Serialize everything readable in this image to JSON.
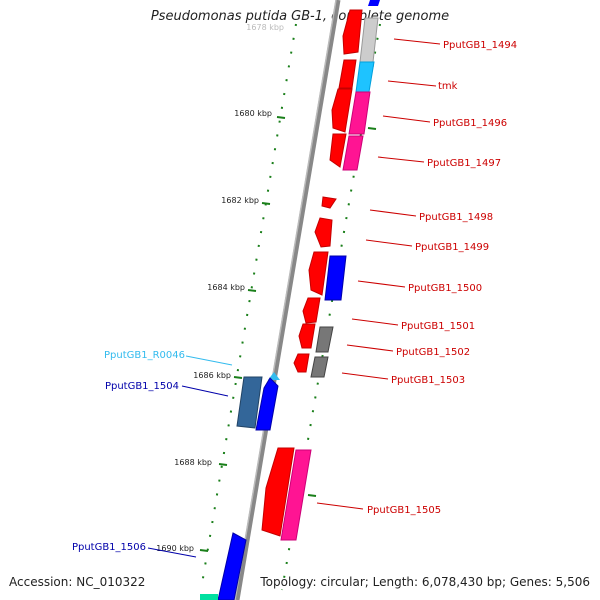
{
  "title": "Pseudomonas putida GB-1, complete genome",
  "footer": {
    "accession": "Accession: NC_010322",
    "topology": "Topology: circular; Length: 6,078,430 bp; Genes: 5,506"
  },
  "colors": {
    "gene_cds_forward": "#ff0000",
    "gene_cds_reverse": "#0000ff",
    "gene_other": "#ff1493",
    "gene_gray": "#777777",
    "gene_tmk": "#00bfff",
    "rna": "#00bfff",
    "tick": "#1a7f1a"
  },
  "kbp_labels": [
    "1680 kbp",
    "1682 kbp",
    "1684 kbp",
    "1686 kbp",
    "1688 kbp",
    "1690 kbp"
  ],
  "partial_top_label": "1678 kbp",
  "gene_labels": [
    {
      "text": "PputGB1_1494",
      "color": "#cc0000"
    },
    {
      "text": "tmk",
      "color": "#cc0000"
    },
    {
      "text": "PputGB1_1496",
      "color": "#cc0000"
    },
    {
      "text": "PputGB1_1497",
      "color": "#cc0000"
    },
    {
      "text": "PputGB1_1498",
      "color": "#cc0000"
    },
    {
      "text": "PputGB1_1499",
      "color": "#cc0000"
    },
    {
      "text": "PputGB1_1500",
      "color": "#cc0000"
    },
    {
      "text": "PputGB1_1501",
      "color": "#cc0000"
    },
    {
      "text": "PputGB1_1502",
      "color": "#cc0000"
    },
    {
      "text": "PputGB1_1503",
      "color": "#cc0000"
    },
    {
      "text": "PputGB1_1505",
      "color": "#cc0000"
    },
    {
      "text": "PputGB1_R0046",
      "color": "#33bbee"
    },
    {
      "text": "PputGB1_1504",
      "color": "#0000aa"
    },
    {
      "text": "PputGB1_1506",
      "color": "#0000aa"
    }
  ]
}
